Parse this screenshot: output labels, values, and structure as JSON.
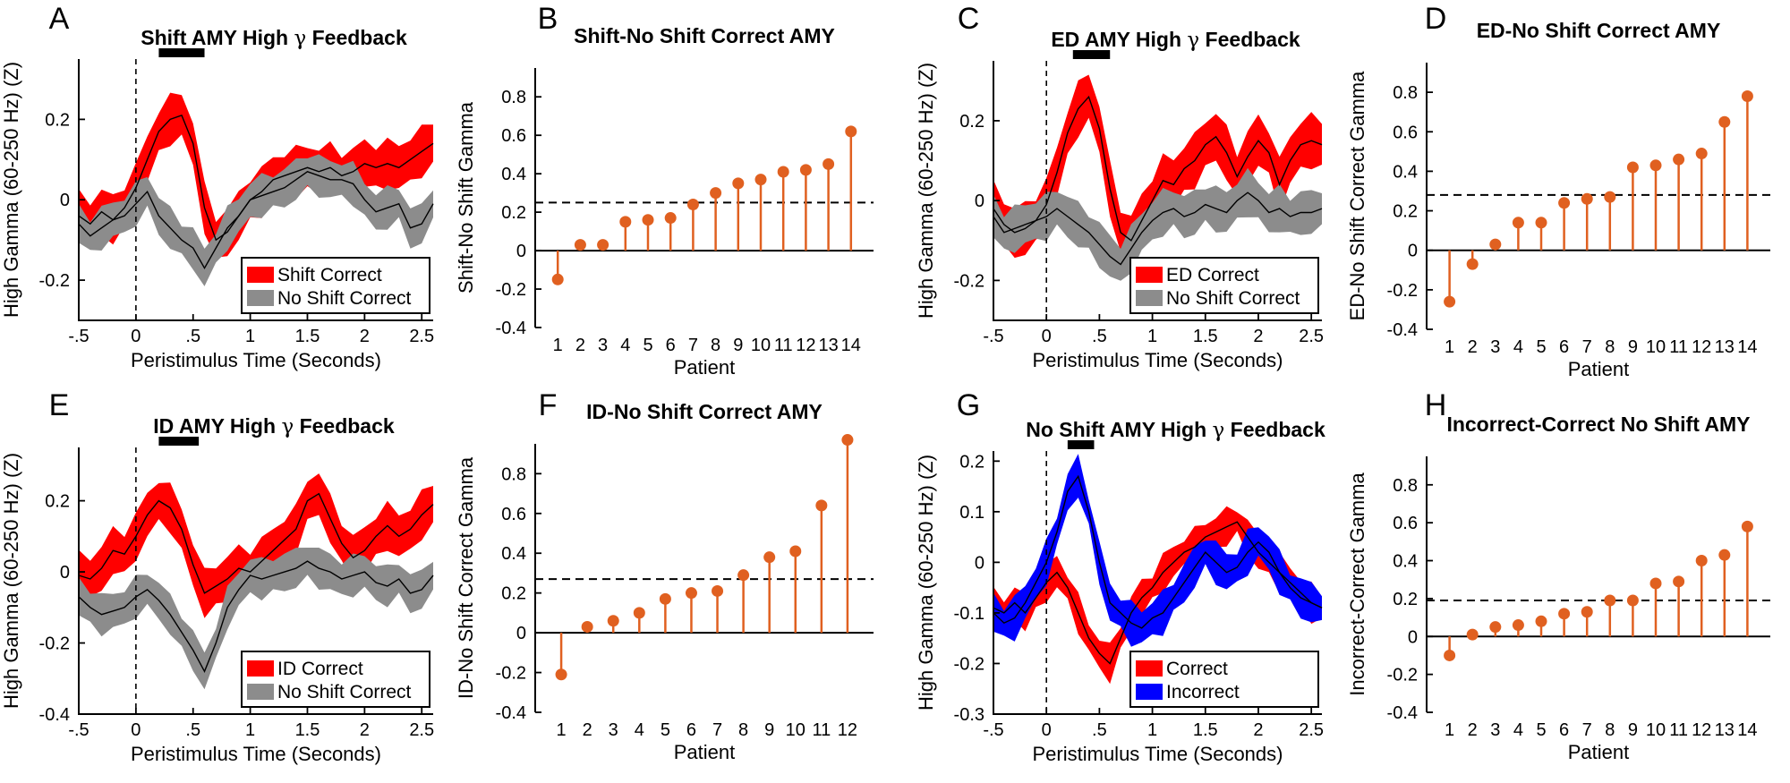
{
  "chart_data": [
    {
      "panel": "A",
      "type": "area",
      "title_parts": [
        "Shift",
        "AMY",
        "High",
        "γ",
        "Feedback"
      ],
      "xlabel": "Peristimulus Time (Seconds)",
      "ylabel": "High Gamma (60-250 Hz) (Z)",
      "xlim": [
        -0.5,
        2.6
      ],
      "ylim": [
        -0.3,
        0.35
      ],
      "xticks": [
        -0.5,
        0,
        0.5,
        1,
        1.5,
        2,
        2.5
      ],
      "xtick_labels": [
        "-.5",
        "0",
        ".5",
        "1",
        "1.5",
        "2",
        "2.5"
      ],
      "yticks": [
        -0.2,
        0,
        0.2
      ],
      "ytick_labels": [
        "-0.2",
        "0",
        "0.2"
      ],
      "sig_bar": [
        0.2,
        0.6
      ],
      "series": [
        {
          "name": "Shift Correct",
          "color": "#ff0000",
          "band": 0.055,
          "x": [
            -0.5,
            -0.4,
            -0.3,
            -0.2,
            -0.1,
            0,
            0.1,
            0.2,
            0.3,
            0.4,
            0.5,
            0.6,
            0.7,
            0.8,
            0.9,
            1.0,
            1.1,
            1.2,
            1.3,
            1.4,
            1.5,
            1.6,
            1.7,
            1.8,
            1.9,
            2.0,
            2.1,
            2.2,
            2.3,
            2.4,
            2.5,
            2.6
          ],
          "values": [
            -0.04,
            -0.06,
            -0.03,
            -0.05,
            -0.02,
            0.03,
            0.1,
            0.17,
            0.2,
            0.21,
            0.14,
            -0.02,
            -0.1,
            -0.08,
            -0.04,
            0.0,
            0.02,
            0.05,
            0.06,
            0.07,
            0.08,
            0.07,
            0.08,
            0.06,
            0.07,
            0.09,
            0.08,
            0.09,
            0.08,
            0.1,
            0.12,
            0.14
          ]
        },
        {
          "name": "No Shift Correct",
          "color": "#8c8c8c",
          "band": 0.045,
          "x": [
            -0.5,
            -0.4,
            -0.3,
            -0.2,
            -0.1,
            0,
            0.1,
            0.2,
            0.3,
            0.4,
            0.5,
            0.6,
            0.7,
            0.8,
            0.9,
            1.0,
            1.1,
            1.2,
            1.3,
            1.4,
            1.5,
            1.6,
            1.7,
            1.8,
            1.9,
            2.0,
            2.1,
            2.2,
            2.3,
            2.4,
            2.5,
            2.6
          ],
          "values": [
            -0.06,
            -0.09,
            -0.07,
            -0.05,
            -0.04,
            -0.01,
            0.02,
            -0.04,
            -0.07,
            -0.1,
            -0.12,
            -0.17,
            -0.12,
            -0.07,
            -0.04,
            0.0,
            0.01,
            0.02,
            0.03,
            0.05,
            0.07,
            0.06,
            0.05,
            0.05,
            0.04,
            0.0,
            -0.03,
            -0.02,
            -0.01,
            -0.07,
            -0.06,
            -0.01
          ]
        }
      ],
      "legend": {
        "position": "bottom-right",
        "entries": [
          "Shift Correct",
          "No Shift Correct"
        ]
      }
    },
    {
      "panel": "B",
      "type": "stem",
      "title": "Shift-No Shift Correct AMY",
      "xlabel": "Patient",
      "ylabel": "Shift-No Shift Gamma",
      "categories": [
        "1",
        "2",
        "3",
        "4",
        "5",
        "6",
        "7",
        "8",
        "9",
        "10",
        "11",
        "12",
        "13",
        "14"
      ],
      "values": [
        -0.15,
        0.03,
        0.03,
        0.15,
        0.16,
        0.17,
        0.24,
        0.3,
        0.35,
        0.37,
        0.41,
        0.42,
        0.45,
        0.62
      ],
      "threshold": 0.25,
      "ylim": [
        -0.4,
        0.95
      ],
      "yticks": [
        -0.4,
        -0.2,
        0,
        0.2,
        0.4,
        0.6,
        0.8
      ],
      "ytick_labels": [
        "-0.4",
        "-0.2",
        "0",
        "0.2",
        "0.4",
        "0.6",
        "0.8"
      ],
      "color": "#e06020"
    },
    {
      "panel": "C",
      "type": "area",
      "title_parts": [
        "ED",
        "AMY",
        "High",
        "γ",
        "Feedback"
      ],
      "xlabel": "Peristimulus Time (Seconds)",
      "ylabel": "High Gamma (60-250 Hz) (Z)",
      "xlim": [
        -0.5,
        2.6
      ],
      "ylim": [
        -0.3,
        0.35
      ],
      "xticks": [
        -0.5,
        0,
        0.5,
        1,
        1.5,
        2,
        2.5
      ],
      "xtick_labels": [
        "-.5",
        "0",
        ".5",
        "1",
        "1.5",
        "2",
        "2.5"
      ],
      "yticks": [
        -0.2,
        0,
        0.2
      ],
      "ytick_labels": [
        "-0.2",
        "0",
        "0.2"
      ],
      "sig_bar": [
        0.25,
        0.6
      ],
      "series": [
        {
          "name": "ED Correct",
          "color": "#ff0000",
          "band": 0.06,
          "x": [
            -0.5,
            -0.4,
            -0.3,
            -0.2,
            -0.1,
            0,
            0.1,
            0.2,
            0.3,
            0.4,
            0.5,
            0.6,
            0.7,
            0.8,
            0.9,
            1.0,
            1.1,
            1.2,
            1.3,
            1.4,
            1.5,
            1.6,
            1.7,
            1.8,
            1.9,
            2.0,
            2.1,
            2.2,
            2.3,
            2.4,
            2.5,
            2.6
          ],
          "values": [
            -0.02,
            -0.06,
            -0.08,
            -0.07,
            -0.05,
            -0.01,
            0.07,
            0.17,
            0.23,
            0.26,
            0.18,
            0.03,
            -0.08,
            -0.1,
            -0.05,
            0.0,
            0.05,
            0.04,
            0.08,
            0.1,
            0.14,
            0.16,
            0.12,
            0.06,
            0.11,
            0.15,
            0.12,
            0.04,
            0.1,
            0.14,
            0.15,
            0.14
          ]
        },
        {
          "name": "No Shift Correct",
          "color": "#8c8c8c",
          "band": 0.05,
          "x": [
            -0.5,
            -0.4,
            -0.3,
            -0.2,
            -0.1,
            0,
            0.1,
            0.2,
            0.3,
            0.4,
            0.5,
            0.6,
            0.7,
            0.8,
            0.9,
            1.0,
            1.1,
            1.2,
            1.3,
            1.4,
            1.5,
            1.6,
            1.7,
            1.8,
            1.9,
            2.0,
            2.1,
            2.2,
            2.3,
            2.4,
            2.5,
            2.6
          ],
          "values": [
            -0.04,
            -0.08,
            -0.07,
            -0.06,
            -0.05,
            -0.04,
            -0.02,
            -0.04,
            -0.06,
            -0.08,
            -0.11,
            -0.14,
            -0.16,
            -0.12,
            -0.08,
            -0.05,
            -0.03,
            -0.02,
            -0.04,
            -0.03,
            -0.01,
            -0.02,
            -0.03,
            0.0,
            0.02,
            0.0,
            -0.03,
            -0.02,
            -0.04,
            -0.03,
            -0.03,
            -0.02
          ]
        }
      ],
      "legend": {
        "position": "bottom-right",
        "entries": [
          "ED Correct",
          "No Shift Correct"
        ]
      }
    },
    {
      "panel": "D",
      "type": "stem",
      "title": "ED-No Shift Correct AMY",
      "xlabel": "Patient",
      "ylabel": "ED-No Shift Correct Gamma",
      "categories": [
        "1",
        "2",
        "3",
        "4",
        "5",
        "6",
        "7",
        "8",
        "9",
        "10",
        "11",
        "12",
        "13",
        "14"
      ],
      "values": [
        -0.26,
        -0.07,
        0.03,
        0.14,
        0.14,
        0.24,
        0.26,
        0.27,
        0.42,
        0.43,
        0.46,
        0.49,
        0.65,
        0.78
      ],
      "threshold": 0.28,
      "ylim": [
        -0.4,
        0.95
      ],
      "yticks": [
        -0.4,
        -0.2,
        0,
        0.2,
        0.4,
        0.6,
        0.8
      ],
      "ytick_labels": [
        "-0.4",
        "-0.2",
        "0",
        "0.2",
        "0.4",
        "0.6",
        "0.8"
      ],
      "color": "#e06020"
    },
    {
      "panel": "E",
      "type": "area",
      "title_parts": [
        "ID",
        "AMY",
        "High",
        "γ",
        "Feedback"
      ],
      "xlabel": "Peristimulus Time (Seconds)",
      "ylabel": "High Gamma (60-250 Hz) (Z)",
      "xlim": [
        -0.5,
        2.6
      ],
      "ylim": [
        -0.4,
        0.35
      ],
      "xticks": [
        -0.5,
        0,
        0.5,
        1,
        1.5,
        2,
        2.5
      ],
      "xtick_labels": [
        "-.5",
        "0",
        ".5",
        "1",
        "1.5",
        "2",
        "2.5"
      ],
      "yticks": [
        -0.4,
        -0.2,
        0,
        0.2
      ],
      "ytick_labels": [
        "-0.4",
        "-0.2",
        "0",
        "0.2"
      ],
      "sig_bar": [
        0.2,
        0.55
      ],
      "series": [
        {
          "name": "ID Correct",
          "color": "#ff0000",
          "band": 0.06,
          "x": [
            -0.5,
            -0.4,
            -0.3,
            -0.2,
            -0.1,
            0,
            0.1,
            0.2,
            0.3,
            0.4,
            0.5,
            0.6,
            0.7,
            0.8,
            0.9,
            1.0,
            1.1,
            1.2,
            1.3,
            1.4,
            1.5,
            1.6,
            1.7,
            1.8,
            1.9,
            2.0,
            2.1,
            2.2,
            2.3,
            2.4,
            2.5,
            2.6
          ],
          "values": [
            -0.01,
            -0.02,
            0.01,
            0.06,
            0.05,
            0.1,
            0.16,
            0.2,
            0.18,
            0.12,
            0.02,
            -0.06,
            -0.04,
            -0.02,
            0.01,
            0.0,
            0.03,
            0.06,
            0.09,
            0.12,
            0.2,
            0.22,
            0.15,
            0.08,
            0.04,
            0.06,
            0.1,
            0.13,
            0.1,
            0.12,
            0.16,
            0.19
          ]
        },
        {
          "name": "No Shift Correct",
          "color": "#8c8c8c",
          "band": 0.05,
          "x": [
            -0.5,
            -0.4,
            -0.3,
            -0.2,
            -0.1,
            0,
            0.1,
            0.2,
            0.3,
            0.4,
            0.5,
            0.6,
            0.7,
            0.8,
            0.9,
            1.0,
            1.1,
            1.2,
            1.3,
            1.4,
            1.5,
            1.6,
            1.7,
            1.8,
            1.9,
            2.0,
            2.1,
            2.2,
            2.3,
            2.4,
            2.5,
            2.6
          ],
          "values": [
            -0.07,
            -0.1,
            -0.12,
            -0.11,
            -0.1,
            -0.07,
            -0.05,
            -0.08,
            -0.12,
            -0.17,
            -0.22,
            -0.28,
            -0.2,
            -0.1,
            -0.05,
            -0.01,
            -0.02,
            -0.01,
            0.0,
            0.01,
            0.03,
            0.01,
            0.0,
            -0.02,
            -0.01,
            0.0,
            -0.03,
            -0.04,
            -0.02,
            -0.06,
            -0.05,
            -0.01
          ]
        }
      ],
      "legend": {
        "position": "bottom-right",
        "entries": [
          "ID Correct",
          "No Shift Correct"
        ]
      }
    },
    {
      "panel": "F",
      "type": "stem",
      "title": "ID-No Shift Correct AMY",
      "xlabel": "Patient",
      "ylabel": "ID-No Shift Correct Gamma",
      "categories": [
        "1",
        "2",
        "3",
        "4",
        "5",
        "6",
        "7",
        "8",
        "9",
        "10",
        "11",
        "12"
      ],
      "values": [
        -0.21,
        0.03,
        0.06,
        0.1,
        0.17,
        0.2,
        0.21,
        0.29,
        0.38,
        0.41,
        0.64,
        0.97
      ],
      "threshold": 0.27,
      "ylim": [
        -0.4,
        0.95
      ],
      "yticks": [
        -0.4,
        -0.2,
        0,
        0.2,
        0.4,
        0.6,
        0.8
      ],
      "ytick_labels": [
        "-0.4",
        "-0.2",
        "0",
        "0.2",
        "0.4",
        "0.6",
        "0.8"
      ],
      "color": "#e06020"
    },
    {
      "panel": "G",
      "type": "area",
      "title_parts": [
        "No Shift",
        "AMY",
        "High",
        "γ",
        "Feedback"
      ],
      "xlabel": "Peristimulus Time (Seconds)",
      "ylabel": "High Gamma (60-250 Hz) (Z)",
      "xlim": [
        -0.5,
        2.6
      ],
      "ylim": [
        -0.3,
        0.22
      ],
      "xticks": [
        -0.5,
        0,
        0.5,
        1,
        1.5,
        2,
        2.5
      ],
      "xtick_labels": [
        "-.5",
        "0",
        ".5",
        "1",
        "1.5",
        "2",
        "2.5"
      ],
      "yticks": [
        -0.3,
        -0.2,
        -0.1,
        0,
        0.1,
        0.2
      ],
      "ytick_labels": [
        "-0.3",
        "-0.2",
        "-0.1",
        "0",
        "0.1",
        "0.2"
      ],
      "sig_bar": [
        0.2,
        0.45
      ],
      "series": [
        {
          "name": "Correct",
          "color": "#ff0000",
          "band": 0.03,
          "x": [
            -0.5,
            -0.4,
            -0.3,
            -0.2,
            -0.1,
            0,
            0.1,
            0.2,
            0.3,
            0.4,
            0.5,
            0.6,
            0.7,
            0.8,
            0.9,
            1.0,
            1.1,
            1.2,
            1.3,
            1.4,
            1.5,
            1.6,
            1.7,
            1.8,
            1.9,
            2.0,
            2.1,
            2.2,
            2.3,
            2.4,
            2.5,
            2.6
          ],
          "values": [
            -0.09,
            -0.1,
            -0.08,
            -0.1,
            -0.07,
            -0.04,
            -0.02,
            -0.05,
            -0.1,
            -0.15,
            -0.18,
            -0.2,
            -0.15,
            -0.1,
            -0.07,
            -0.05,
            -0.02,
            0.0,
            0.02,
            0.03,
            0.05,
            0.06,
            0.07,
            0.08,
            0.05,
            0.02,
            0.0,
            -0.02,
            -0.04,
            -0.06,
            -0.08,
            -0.09
          ]
        },
        {
          "name": "Incorrect",
          "color": "#0000ff",
          "band": 0.035,
          "x": [
            -0.5,
            -0.4,
            -0.3,
            -0.2,
            -0.1,
            0,
            0.1,
            0.2,
            0.3,
            0.4,
            0.5,
            0.6,
            0.7,
            0.8,
            0.9,
            1.0,
            1.1,
            1.2,
            1.3,
            1.4,
            1.5,
            1.6,
            1.7,
            1.8,
            1.9,
            2.0,
            2.1,
            2.2,
            2.3,
            2.4,
            2.5,
            2.6
          ],
          "values": [
            -0.1,
            -0.12,
            -0.11,
            -0.08,
            -0.04,
            0.0,
            0.06,
            0.14,
            0.17,
            0.1,
            0.0,
            -0.08,
            -0.1,
            -0.12,
            -0.13,
            -0.11,
            -0.1,
            -0.07,
            -0.04,
            -0.01,
            0.02,
            0.0,
            -0.02,
            -0.01,
            0.02,
            0.04,
            0.02,
            -0.02,
            -0.05,
            -0.07,
            -0.08,
            -0.09
          ]
        }
      ],
      "legend": {
        "position": "bottom-right",
        "entries": [
          "Correct",
          "Incorrect"
        ]
      }
    },
    {
      "panel": "H",
      "type": "stem",
      "title": "Incorrect-Correct No Shift AMY",
      "xlabel": "Patient",
      "ylabel": "Incorrect-Correct Gamma",
      "categories": [
        "1",
        "2",
        "3",
        "4",
        "5",
        "6",
        "7",
        "8",
        "9",
        "10",
        "11",
        "12",
        "13",
        "14"
      ],
      "values": [
        -0.1,
        0.01,
        0.05,
        0.06,
        0.08,
        0.12,
        0.13,
        0.19,
        0.19,
        0.28,
        0.29,
        0.4,
        0.43,
        0.58
      ],
      "threshold": 0.19,
      "ylim": [
        -0.4,
        0.95
      ],
      "yticks": [
        -0.4,
        -0.2,
        0,
        0.2,
        0.4,
        0.6,
        0.8
      ],
      "ytick_labels": [
        "-0.4",
        "-0.2",
        "0",
        "0.2",
        "0.4",
        "0.6",
        "0.8"
      ],
      "color": "#e06020"
    }
  ]
}
